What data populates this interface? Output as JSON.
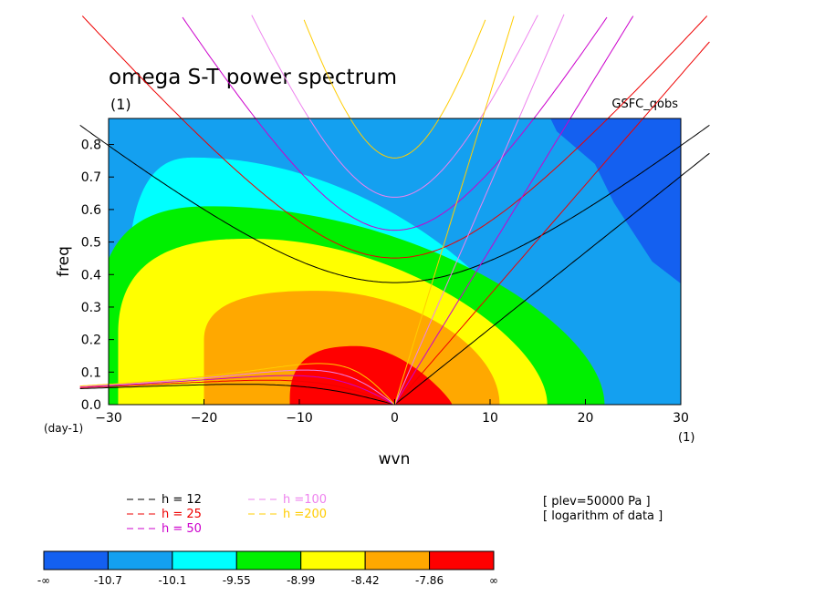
{
  "figure": {
    "title": "omega S-T power spectrum",
    "title_units": "(1)",
    "dataset": "GSFC_qobs",
    "xunits_left": "(day-1)",
    "xunits_right": "(1)",
    "info": [
      "[ plev=50000 Pa ]",
      "[ logarithm of data ]"
    ]
  },
  "chart_data": {
    "type": "heatmap",
    "xlabel": "wvn",
    "ylabel": "freq",
    "xlim": [
      -30,
      30
    ],
    "ylim": [
      0,
      0.88
    ],
    "xticks": [
      -30,
      -20,
      -10,
      0,
      10,
      20,
      30
    ],
    "yticks": [
      0.0,
      0.1,
      0.2,
      0.3,
      0.4,
      0.5,
      0.6,
      0.7,
      0.8
    ],
    "colorbar": {
      "labels": [
        "-∞",
        "-10.7",
        "-10.1",
        "-9.55",
        "-8.99",
        "-8.42",
        "-7.86",
        "∞"
      ],
      "colors": [
        "#1460f0",
        "#14a0f0",
        "#00ffff",
        "#00f000",
        "#ffff00",
        "#ffa800",
        "#ff0000"
      ]
    },
    "filled_contours": [
      {
        "level": 1,
        "cx": -21,
        "cy": 0.36,
        "lx": 7,
        "rx": 37,
        "ty": 0.76,
        "color": "#00ffff"
      },
      {
        "level": 2,
        "cx": -19,
        "cy": 0.28,
        "lx": 12,
        "rx": 41,
        "ty": 0.61,
        "color": "#00f000"
      },
      {
        "level": 3,
        "cx": -15,
        "cy": 0.22,
        "lx": 14,
        "rx": 31,
        "ty": 0.51,
        "color": "#ffff00"
      },
      {
        "level": 4,
        "cx": -8,
        "cy": 0.2,
        "lx": 12,
        "rx": 19,
        "ty": 0.35,
        "color": "#ffa800"
      },
      {
        "level": 5,
        "cx": -4,
        "cy": 0.02,
        "lx": 7,
        "rx": 10,
        "ty": 0.18,
        "color": "#ff0000"
      }
    ],
    "dispersion_legend": [
      {
        "label": "h = 12",
        "color": "#000000"
      },
      {
        "label": "h = 25",
        "color": "#ee0000"
      },
      {
        "label": "h = 50",
        "color": "#cc00cc"
      },
      {
        "label": "h =100",
        "color": "#ee82ee"
      },
      {
        "label": "h =200",
        "color": "#ffcc00"
      }
    ],
    "equivalent_depths": [
      12,
      25,
      50,
      100,
      200
    ]
  }
}
